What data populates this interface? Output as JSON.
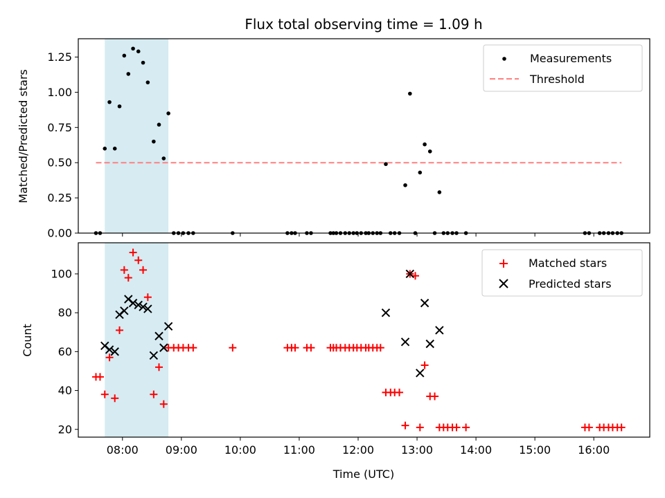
{
  "chart_data": [
    {
      "type": "scatter",
      "title": "Flux total observing time = 1.09 h",
      "xlabel": "",
      "ylabel": "Matched/Predicted stars",
      "ylim": [
        0,
        1.38
      ],
      "yticks": [
        0,
        0.25,
        0.5,
        0.75,
        1.0,
        1.25
      ],
      "ytick_labels": [
        "0.00",
        "0.25",
        "0.50",
        "0.75",
        "1.00",
        "1.25"
      ],
      "xlim": [
        7.25,
        16.95
      ],
      "highlight_span": [
        7.7,
        8.78
      ],
      "legend_position": "upper right",
      "series": [
        {
          "name": "Measurements",
          "marker": "dot",
          "color": "#000000",
          "x": [
            7.55,
            7.62,
            7.7,
            7.78,
            7.87,
            7.95,
            8.03,
            8.1,
            8.18,
            8.27,
            8.35,
            8.43,
            8.53,
            8.62,
            8.7,
            8.78,
            8.87,
            8.95,
            9.03,
            9.12,
            9.2,
            9.87,
            10.8,
            10.87,
            10.93,
            11.13,
            11.2,
            11.53,
            11.58,
            11.63,
            11.7,
            11.78,
            11.85,
            11.92,
            11.98,
            12.05,
            12.13,
            12.18,
            12.25,
            12.32,
            12.38,
            12.47,
            12.55,
            12.62,
            12.7,
            12.8,
            12.88,
            12.97,
            13.05,
            13.13,
            13.22,
            13.3,
            13.38,
            13.45,
            13.52,
            13.6,
            13.67,
            13.83,
            15.85,
            15.92,
            16.1,
            16.17,
            16.25,
            16.32,
            16.4,
            16.47
          ],
          "y": [
            0,
            0,
            0.6,
            0.93,
            0.6,
            0.9,
            1.26,
            1.13,
            1.31,
            1.29,
            1.21,
            1.07,
            0.65,
            0.77,
            0.53,
            0.85,
            0,
            0,
            0,
            0,
            0,
            0,
            0,
            0,
            0,
            0,
            0,
            0,
            0,
            0,
            0,
            0,
            0,
            0,
            0,
            0,
            0,
            0,
            0,
            0,
            0,
            0.49,
            0,
            0,
            0,
            0.34,
            0.99,
            0,
            0.43,
            0.63,
            0.58,
            0,
            0.29,
            0,
            0,
            0,
            0,
            0,
            0,
            0,
            0,
            0,
            0,
            0,
            0,
            0
          ]
        },
        {
          "name": "Threshold",
          "marker": "dashed-line",
          "color": "#ff7f7f",
          "x": [
            7.55,
            16.47
          ],
          "y": [
            0.5,
            0.5
          ]
        }
      ]
    },
    {
      "type": "scatter",
      "title": "",
      "xlabel": "Time (UTC)",
      "ylabel": "Count",
      "ylim": [
        16,
        116
      ],
      "yticks": [
        20,
        40,
        60,
        80,
        100
      ],
      "ytick_labels": [
        "20",
        "40",
        "60",
        "80",
        "100"
      ],
      "xlim": [
        7.25,
        16.95
      ],
      "xticks": [
        8,
        9,
        10,
        11,
        12,
        13,
        14,
        15,
        16
      ],
      "xtick_labels": [
        "08:00",
        "09:00",
        "10:00",
        "11:00",
        "12:00",
        "13:00",
        "14:00",
        "15:00",
        "16:00"
      ],
      "highlight_span": [
        7.7,
        8.78
      ],
      "legend_position": "upper right",
      "series": [
        {
          "name": "Matched stars",
          "marker": "plus",
          "color": "#ff0000",
          "x": [
            7.55,
            7.62,
            7.7,
            7.78,
            7.87,
            7.95,
            8.03,
            8.1,
            8.18,
            8.27,
            8.35,
            8.43,
            8.53,
            8.62,
            8.7,
            8.78,
            8.87,
            8.95,
            9.03,
            9.12,
            9.2,
            9.87,
            10.8,
            10.87,
            10.93,
            11.13,
            11.2,
            11.53,
            11.58,
            11.63,
            11.7,
            11.78,
            11.85,
            11.92,
            11.98,
            12.05,
            12.13,
            12.18,
            12.25,
            12.32,
            12.38,
            12.47,
            12.55,
            12.62,
            12.7,
            12.8,
            12.88,
            12.97,
            13.05,
            13.13,
            13.22,
            13.3,
            13.38,
            13.45,
            13.52,
            13.6,
            13.67,
            13.83,
            15.85,
            15.92,
            16.1,
            16.17,
            16.25,
            16.32,
            16.4,
            16.47
          ],
          "y": [
            47,
            47,
            38,
            57,
            36,
            71,
            102,
            98,
            111,
            107,
            102,
            88,
            38,
            52,
            33,
            62,
            62,
            62,
            62,
            62,
            62,
            62,
            62,
            62,
            62,
            62,
            62,
            62,
            62,
            62,
            62,
            62,
            62,
            62,
            62,
            62,
            62,
            62,
            62,
            62,
            62,
            39,
            39,
            39,
            39,
            22,
            100,
            99,
            21,
            53,
            37,
            37,
            21,
            21,
            21,
            21,
            21,
            21,
            21,
            21,
            21,
            21,
            21,
            21,
            21,
            21
          ]
        },
        {
          "name": "Predicted stars",
          "marker": "x",
          "color": "#000000",
          "x": [
            7.7,
            7.78,
            7.87,
            7.95,
            8.03,
            8.1,
            8.18,
            8.27,
            8.35,
            8.43,
            8.53,
            8.62,
            8.7,
            8.78,
            12.47,
            12.8,
            12.88,
            13.05,
            13.13,
            13.22,
            13.38
          ],
          "y": [
            63,
            61,
            60,
            79,
            81,
            87,
            85,
            84,
            83,
            82,
            58,
            68,
            62,
            73,
            80,
            65,
            100,
            49,
            85,
            64,
            71
          ]
        }
      ]
    }
  ]
}
